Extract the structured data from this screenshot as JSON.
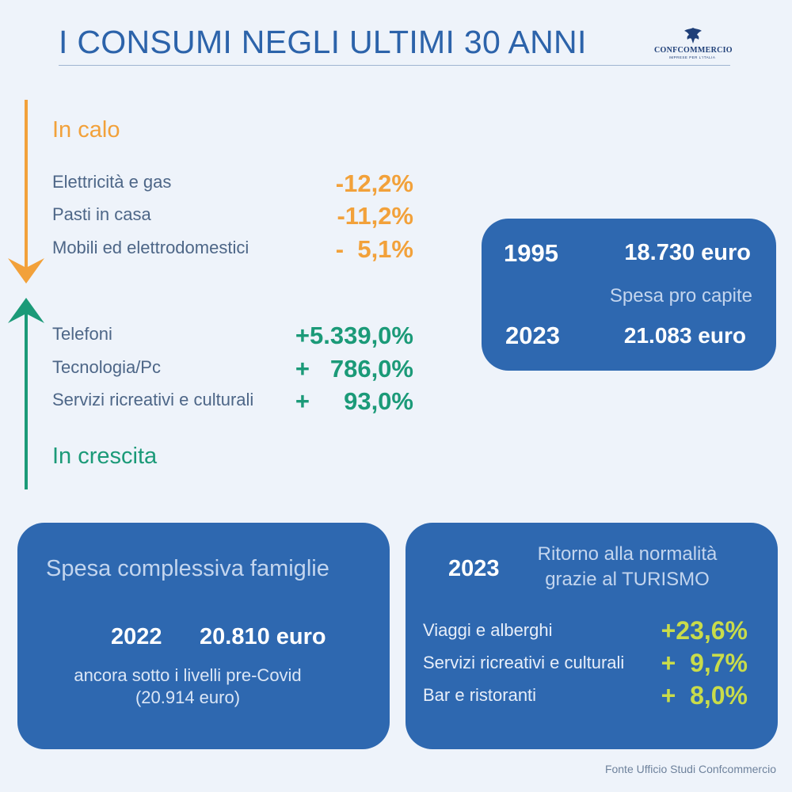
{
  "header": {
    "title": "I CONSUMI NEGLI ULTIMI 30 ANNI",
    "logo_name": "CONFCOMMERCIO",
    "logo_tag": "IMPRESE PER L'ITALIA"
  },
  "decline": {
    "heading": "In calo",
    "items": [
      {
        "label": "Elettricità e gas",
        "value": "-12,2%"
      },
      {
        "label": "Pasti in casa",
        "value": "-11,2%"
      },
      {
        "label": "Mobili ed elettrodomestici",
        "value": "-  5,1%"
      }
    ]
  },
  "growth": {
    "heading": "In crescita",
    "items": [
      {
        "label": "Telefoni",
        "value": "+5.339,0%"
      },
      {
        "label": "Tecnologia/Pc",
        "value": "+   786,0%"
      },
      {
        "label": "Servizi ricreativi e culturali",
        "value": "+     93,0%"
      }
    ]
  },
  "per_capita": {
    "year1": "1995",
    "value1": "18.730 euro",
    "label": "Spesa pro capite",
    "year2": "2023",
    "value2": "21.083 euro"
  },
  "household": {
    "title": "Spesa complessiva famiglie",
    "year": "2022",
    "value": "20.810 euro",
    "note1": "ancora sotto i livelli pre-Covid",
    "note2": "(20.914 euro)"
  },
  "tourism": {
    "year": "2023",
    "title1": "Ritorno alla normalità",
    "title2": "grazie al TURISMO",
    "items": [
      {
        "label": "Viaggi e alberghi",
        "value": "+23,6%"
      },
      {
        "label": "Servizi ricreativi e culturali",
        "value": "+  9,7%"
      },
      {
        "label": "Bar e ristoranti",
        "value": "+  8,0%"
      }
    ]
  },
  "source": "Fonte Ufficio Studi Confcommercio",
  "colors": {
    "accent_blue": "#2c63aa",
    "card_blue": "#2e68b0",
    "orange": "#f2a13a",
    "green": "#1b9a78",
    "lime": "#c9dc4a"
  }
}
